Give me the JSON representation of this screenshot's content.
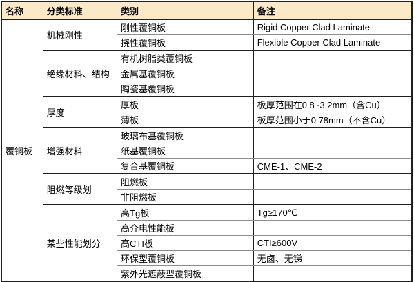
{
  "colors": {
    "header_bg": "#FBE9C7",
    "border_dark": "#1F1F1F",
    "border_light": "#8C8C8C",
    "text": "#000000",
    "body_bg": "#FFFFFF"
  },
  "table": {
    "headers": {
      "name": "名称",
      "standard": "分类标准",
      "category": "类别",
      "remark": "备注"
    },
    "name_span": "覆铜板",
    "groups": [
      {
        "standard": "机械刚性",
        "rows": [
          {
            "category": "刚性覆铜板",
            "remark": "Rigid Copper Clad Laminate"
          },
          {
            "category": "挠性覆铜板",
            "remark": "Flexible Copper Clad Laminate"
          }
        ]
      },
      {
        "standard": "绝缘材料、结构",
        "rows": [
          {
            "category": "有机树脂类覆铜板",
            "remark": ""
          },
          {
            "category": "金属基覆铜板",
            "remark": ""
          },
          {
            "category": "陶瓷基覆铜板",
            "remark": ""
          }
        ]
      },
      {
        "standard": "厚度",
        "rows": [
          {
            "category": "厚板",
            "remark": "板厚范围在0.8~3.2mm（含Cu）"
          },
          {
            "category": "薄板",
            "remark": "板厚范围小于0.78mm（不含Cu）"
          }
        ]
      },
      {
        "standard": "增强材料",
        "rows": [
          {
            "category": "玻璃布基覆铜板",
            "remark": ""
          },
          {
            "category": "纸基覆铜板",
            "remark": ""
          },
          {
            "category": "复合基覆铜板",
            "remark": "CME-1、CME-2"
          }
        ]
      },
      {
        "standard": "阻燃等级划",
        "rows": [
          {
            "category": "阻燃板",
            "remark": ""
          },
          {
            "category": "非阻燃板",
            "remark": ""
          }
        ]
      },
      {
        "standard": "某些性能划分",
        "rows": [
          {
            "category": "高Tg板",
            "remark": "Tg≥170℃"
          },
          {
            "category": "高介电性能板",
            "remark": ""
          },
          {
            "category": "高CTI板",
            "remark": "CTI≥600V"
          },
          {
            "category": "环保型覆铜板",
            "remark": "无卤、无锑"
          },
          {
            "category": "紫外光遮蔽型覆铜板",
            "remark": ""
          }
        ]
      }
    ]
  }
}
